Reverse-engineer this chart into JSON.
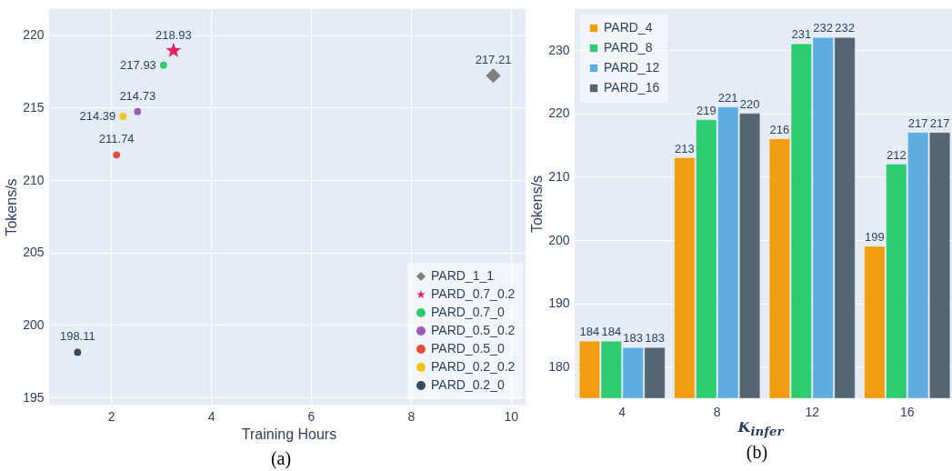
{
  "chart_data": [
    {
      "type": "scatter",
      "xlabel": "Training Hours",
      "ylabel": "Tokens/s",
      "xlim": [
        0.76,
        10.35
      ],
      "xticks": [
        2,
        4,
        6,
        8,
        10
      ],
      "ylim": [
        194.5,
        221.8
      ],
      "yticks": [
        195,
        200,
        205,
        210,
        215,
        220
      ],
      "grid": true,
      "legend": "bottom right",
      "data_labels": true,
      "annotations": [
        "(a)"
      ],
      "series": [
        {
          "name": "PARD_1_1",
          "color": "#808080",
          "marker": "diamond",
          "x": [
            9.65
          ],
          "values": [
            217.21
          ]
        },
        {
          "name": "PARD_0.7_0.2",
          "color": "#e91e63",
          "marker": "star",
          "x": [
            3.25
          ],
          "values": [
            218.93
          ]
        },
        {
          "name": "PARD_0.7_0",
          "color": "#2ecc71",
          "marker": "circle",
          "x": [
            3.05
          ],
          "values": [
            217.93
          ]
        },
        {
          "name": "PARD_0.5_0.2",
          "color": "#9b59b6",
          "marker": "circle",
          "x": [
            2.53
          ],
          "values": [
            214.73
          ]
        },
        {
          "name": "PARD_0.5_0",
          "color": "#e74c3c",
          "marker": "circle",
          "x": [
            2.11
          ],
          "values": [
            211.74
          ]
        },
        {
          "name": "PARD_0.2_0.2",
          "color": "#f1c40f",
          "marker": "circle",
          "x": [
            2.24
          ],
          "values": [
            214.39
          ]
        },
        {
          "name": "PARD_0.2_0",
          "color": "#34495e",
          "marker": "circle",
          "x": [
            1.33
          ],
          "values": [
            198.11
          ]
        }
      ]
    },
    {
      "type": "bar",
      "xlabel": "K$_{infer}$",
      "ylabel": "Tokens/s",
      "categories": [
        "4",
        "8",
        "12",
        "16"
      ],
      "ylim": [
        175,
        236.5
      ],
      "yticks": [
        180,
        190,
        200,
        210,
        220,
        230
      ],
      "grid": true,
      "legend": "top left",
      "data_labels": true,
      "annotations": [
        "(b)"
      ],
      "series": [
        {
          "name": "PARD_4",
          "color": "#f39c12",
          "values": [
            184,
            213,
            216,
            199
          ]
        },
        {
          "name": "PARD_8",
          "color": "#2ecc71",
          "values": [
            184,
            219,
            231,
            212
          ]
        },
        {
          "name": "PARD_12",
          "color": "#5dade2",
          "values": [
            183,
            221,
            232,
            217
          ]
        },
        {
          "name": "PARD_16",
          "color": "#566573",
          "values": [
            183,
            220,
            232,
            217
          ]
        }
      ]
    }
  ]
}
